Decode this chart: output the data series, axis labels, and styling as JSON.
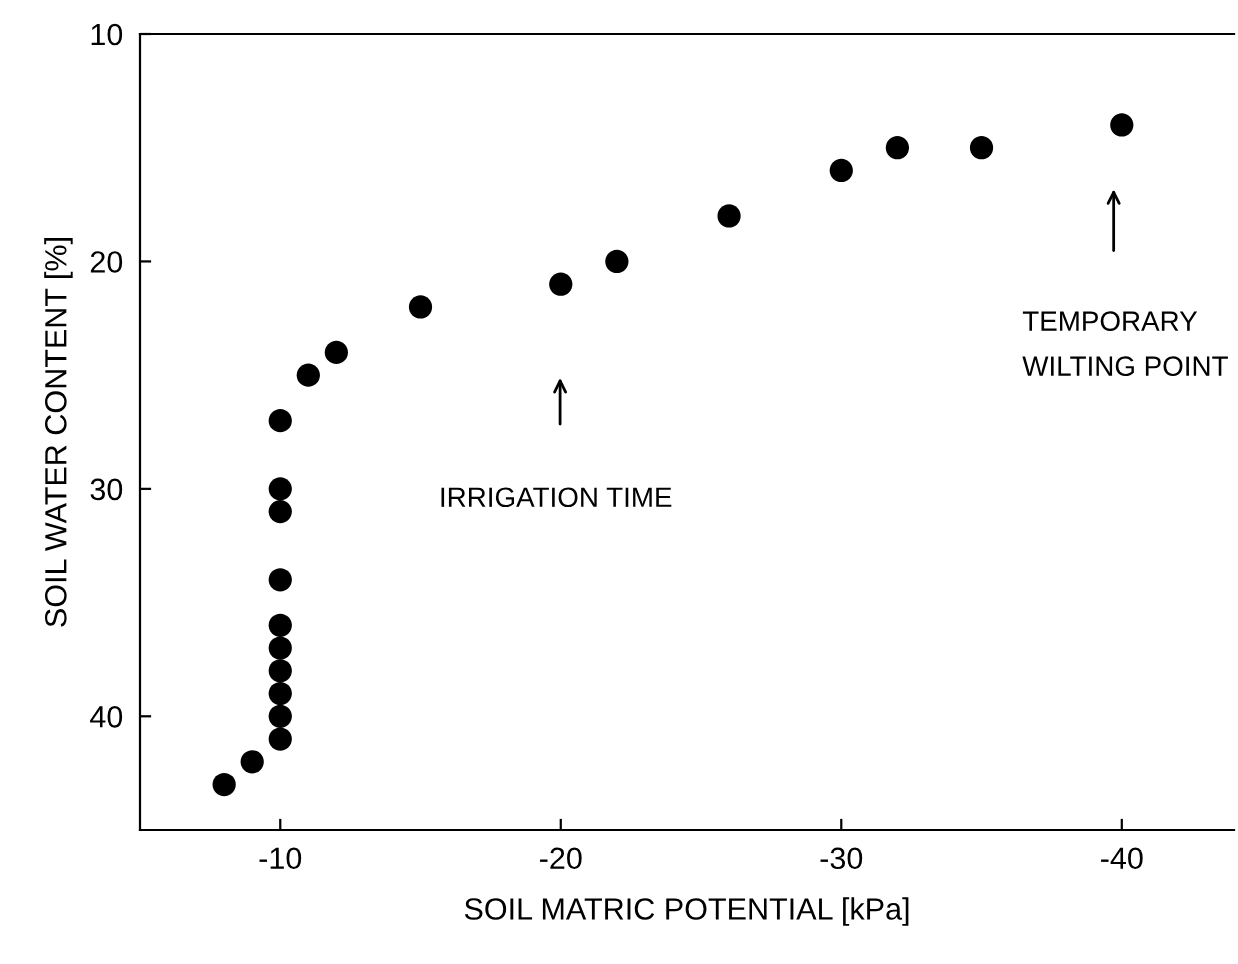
{
  "chart_data": {
    "type": "scatter",
    "xlabel": "SOIL MATRIC POTENTIAL [kPa]",
    "ylabel": "SOIL WATER CONTENT [%]",
    "x": [
      -8,
      -9,
      -10,
      -10,
      -10,
      -10,
      -10,
      -10,
      -10,
      -10,
      -10,
      -10,
      -11,
      -12,
      -15,
      -20,
      -22,
      -26,
      -30,
      -32,
      -35,
      -40
    ],
    "values": [
      43,
      42,
      41,
      40,
      39,
      38,
      37,
      36,
      34,
      31,
      30,
      27,
      25,
      24,
      22,
      21,
      20,
      18,
      16,
      15,
      15,
      14
    ],
    "color": "#000000",
    "marker": "circle",
    "xlim": [
      -5,
      -44
    ],
    "xticks": [
      -10,
      -20,
      -30,
      -40
    ],
    "ylim": [
      45,
      10
    ],
    "yticks": [
      10,
      20,
      30,
      40
    ],
    "grid": false,
    "legend": false,
    "annotations": [
      "IRRIGATION TIME",
      "TEMPORARY\nWILTING POINT"
    ]
  }
}
